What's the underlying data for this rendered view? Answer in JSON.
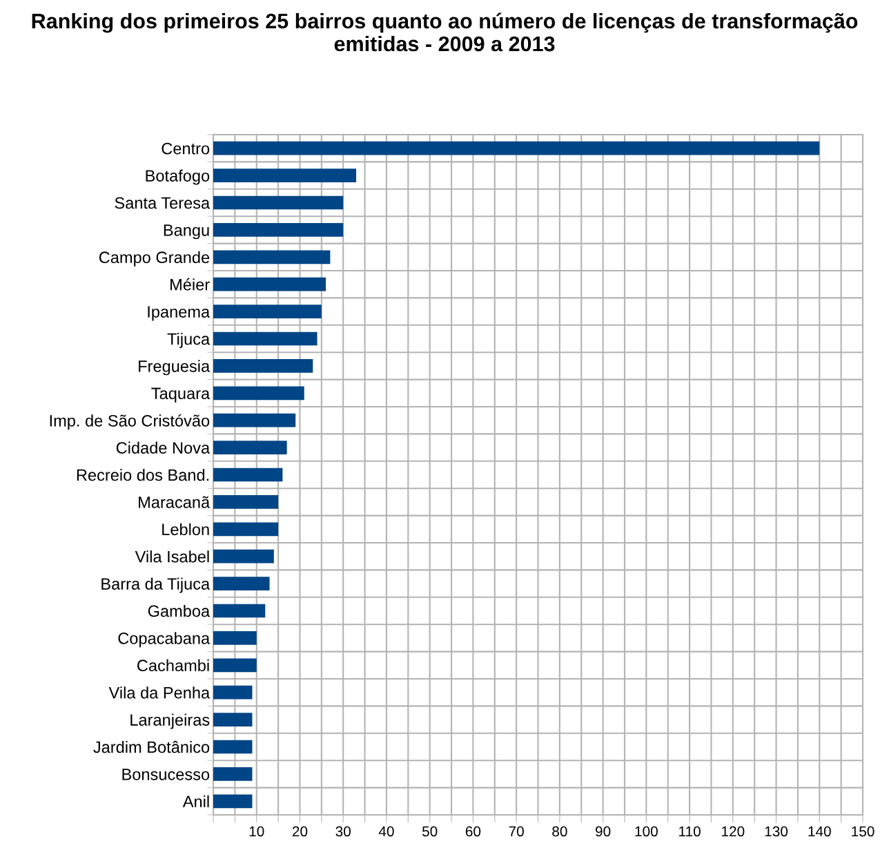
{
  "chart_data": {
    "type": "bar",
    "orientation": "horizontal",
    "title": "Ranking dos primeiros 25 bairros quanto ao número de licenças de transformação emitidas - 2009 a 2013",
    "categories": [
      "Centro",
      "Botafogo",
      "Santa Teresa",
      "Bangu",
      "Campo Grande",
      "Méier",
      "Ipanema",
      "Tijuca",
      "Freguesia",
      "Taquara",
      "Imp. de São Cristóvão",
      "Cidade Nova",
      "Recreio dos Band.",
      "Maracanã",
      "Leblon",
      "Vila Isabel",
      "Barra da Tijuca",
      "Gamboa",
      "Copacabana",
      "Cachambi",
      "Vila da Penha",
      "Laranjeiras",
      "Jardim Botânico",
      "Bonsucesso",
      "Anil"
    ],
    "values": [
      140,
      33,
      30,
      30,
      27,
      26,
      25,
      24,
      23,
      21,
      19,
      17,
      16,
      15,
      15,
      14,
      13,
      12,
      10,
      10,
      9,
      9,
      9,
      9,
      9
    ],
    "color": "#004586",
    "xlim": [
      0,
      150
    ],
    "xticks": [
      {
        "value": 0,
        "label": null
      },
      {
        "value": 5,
        "label": null
      },
      10,
      {
        "value": 15,
        "label": null
      },
      20,
      {
        "value": 25,
        "label": null
      },
      30,
      {
        "value": 35,
        "label": null
      },
      40,
      {
        "value": 45,
        "label": null
      },
      50,
      {
        "value": 55,
        "label": null
      },
      60,
      {
        "value": 65,
        "label": null
      },
      70,
      {
        "value": 75,
        "label": null
      },
      80,
      {
        "value": 85,
        "label": null
      },
      90,
      {
        "value": 95,
        "label": null
      },
      100,
      {
        "value": 105,
        "label": null
      },
      110,
      {
        "value": 115,
        "label": null
      },
      120,
      {
        "value": 125,
        "label": null
      },
      130,
      {
        "value": 135,
        "label": null
      },
      140,
      {
        "value": 145,
        "label": null
      },
      150
    ],
    "grid": true,
    "legend": false
  }
}
